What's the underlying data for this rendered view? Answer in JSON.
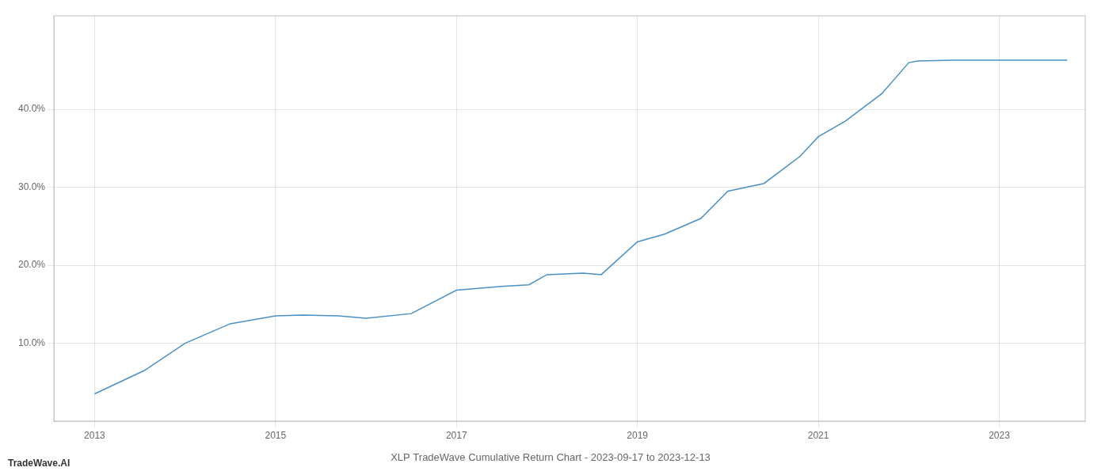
{
  "chart_data": {
    "type": "line",
    "title": "XLP TradeWave Cumulative Return Chart - 2023-09-17 to 2023-12-13",
    "annotations": [
      "TradeWave.AI"
    ],
    "x": [
      2013.0,
      2013.55,
      2014.0,
      2014.5,
      2015.0,
      2015.3,
      2015.7,
      2016.0,
      2016.5,
      2017.0,
      2017.5,
      2017.8,
      2018.0,
      2018.4,
      2018.6,
      2019.0,
      2019.3,
      2019.7,
      2020.0,
      2020.4,
      2020.8,
      2021.0,
      2021.3,
      2021.7,
      2022.0,
      2022.1,
      2022.5,
      2023.0,
      2023.75
    ],
    "values": [
      3.5,
      6.5,
      10.0,
      12.5,
      13.5,
      13.6,
      13.5,
      13.2,
      13.8,
      16.8,
      17.3,
      17.5,
      18.8,
      19.0,
      18.8,
      23.0,
      24.0,
      26.0,
      29.5,
      30.5,
      34.0,
      36.5,
      38.5,
      42.0,
      46.0,
      46.2,
      46.3,
      46.3,
      46.3
    ],
    "color": "#4a90c4",
    "xlim": [
      2012.55,
      2023.95
    ],
    "xticks": [
      2013,
      2015,
      2017,
      2019,
      2021,
      2023
    ],
    "ylim": [
      0,
      52
    ],
    "yticks": [
      {
        "value": 10.0,
        "label": "10.0%"
      },
      {
        "value": 20.0,
        "label": "20.0%"
      },
      {
        "value": 30.0,
        "label": "30.0%"
      },
      {
        "value": 40.0,
        "label": "40.0%"
      }
    ],
    "grid": true
  }
}
